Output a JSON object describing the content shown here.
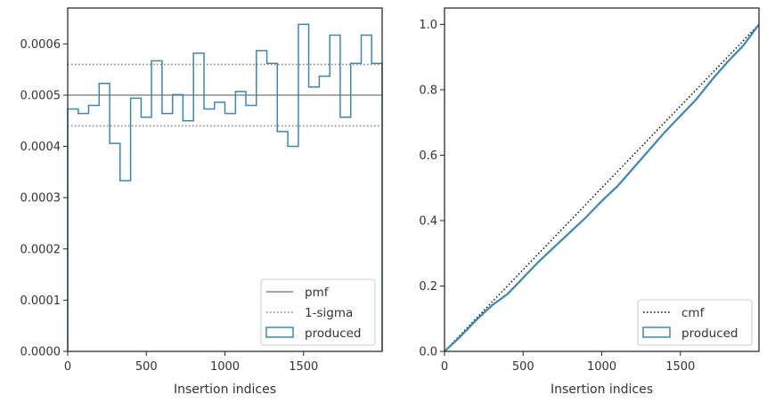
{
  "chart_data": [
    {
      "type": "step",
      "xlabel": "Insertion indices",
      "ylabel": "",
      "xlim": [
        0,
        2000
      ],
      "ylim": [
        0,
        0.00067
      ],
      "xticks": [
        0,
        500,
        1000,
        1500
      ],
      "xtick_labels": [
        "0",
        "500",
        "1000",
        "1500"
      ],
      "yticks": [
        0,
        0.0001,
        0.0002,
        0.0003,
        0.0004,
        0.0005,
        0.0006
      ],
      "ytick_labels": [
        "0.0000",
        "0.0001",
        "0.0002",
        "0.0003",
        "0.0004",
        "0.0005",
        "0.0006"
      ],
      "grid": false,
      "legend_position": "bottom-right",
      "series": [
        {
          "name": "pmf",
          "style": "solid",
          "color": "#808080",
          "y": 0.0005
        },
        {
          "name": "1-sigma",
          "style": "dotted",
          "color": "#808080",
          "y": [
            0.00044,
            0.00056
          ]
        },
        {
          "name": "produced",
          "style": "step",
          "color": "#3a87b5",
          "bin_edges": [
            0,
            67,
            133,
            200,
            267,
            333,
            400,
            467,
            533,
            600,
            667,
            733,
            800,
            867,
            933,
            1000,
            1067,
            1133,
            1200,
            1267,
            1333,
            1400,
            1467,
            1533,
            1600,
            1667,
            1733,
            1800,
            1867,
            1933,
            2000
          ],
          "values": [
            0.000473,
            0.000464,
            0.00048,
            0.000523,
            0.000406,
            0.000333,
            0.000494,
            0.000457,
            0.000567,
            0.000464,
            0.000501,
            0.00045,
            0.000582,
            0.000473,
            0.000486,
            0.000464,
            0.000507,
            0.00048,
            0.000587,
            0.000562,
            0.000429,
            0.0004,
            0.000638,
            0.000516,
            0.000537,
            0.000617,
            0.000457,
            0.000562,
            0.000617,
            0.000562
          ]
        }
      ]
    },
    {
      "type": "line",
      "xlabel": "Insertion indices",
      "ylabel": "",
      "xlim": [
        0,
        2000
      ],
      "ylim": [
        0,
        1.05
      ],
      "xticks": [
        0,
        500,
        1000,
        1500
      ],
      "xtick_labels": [
        "0",
        "500",
        "1000",
        "1500"
      ],
      "yticks": [
        0,
        0.2,
        0.4,
        0.6,
        0.8,
        1.0
      ],
      "ytick_labels": [
        "0.0",
        "0.2",
        "0.4",
        "0.6",
        "0.8",
        "1.0"
      ],
      "grid": false,
      "legend_position": "bottom-right",
      "series": [
        {
          "name": "cmf",
          "style": "dotted",
          "color": "#000000",
          "x": [
            0,
            2000
          ],
          "y": [
            0,
            1
          ]
        },
        {
          "name": "produced",
          "style": "solid",
          "color": "#3a87b5",
          "x": [
            0,
            100,
            200,
            300,
            400,
            500,
            600,
            700,
            800,
            900,
            1000,
            1100,
            1200,
            1300,
            1400,
            1500,
            1600,
            1700,
            1800,
            1900,
            2000
          ],
          "y": [
            0,
            0.045,
            0.095,
            0.14,
            0.175,
            0.225,
            0.275,
            0.32,
            0.365,
            0.41,
            0.46,
            0.505,
            0.56,
            0.615,
            0.67,
            0.72,
            0.77,
            0.83,
            0.885,
            0.935,
            1.0
          ]
        }
      ]
    }
  ]
}
